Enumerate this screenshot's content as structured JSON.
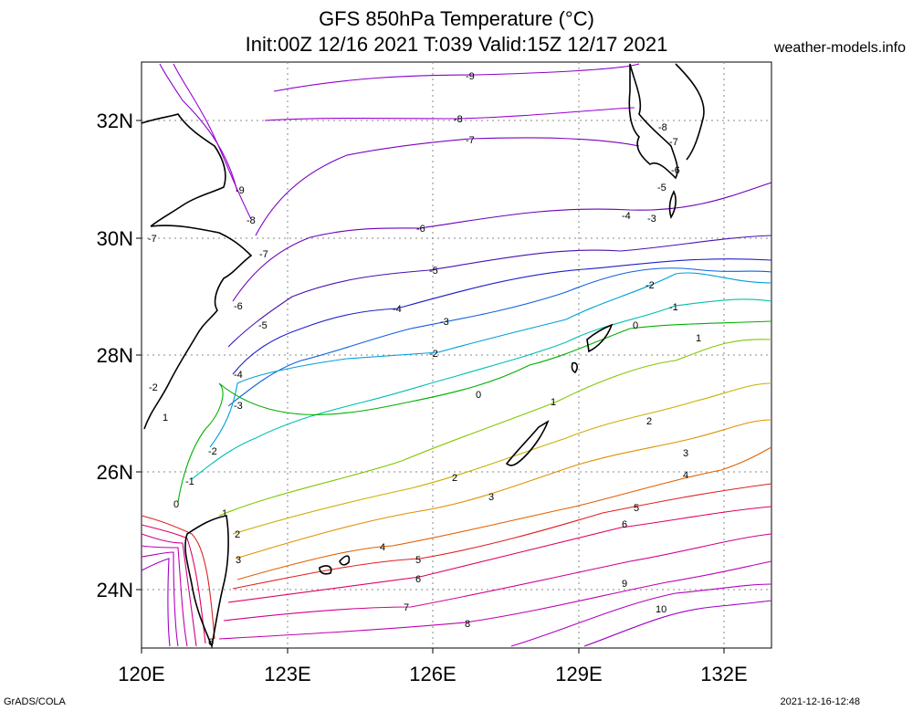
{
  "header": {
    "title": "GFS 850hPa Temperature (°C)",
    "subtitle": "Init:00Z 12/16 2021 T:039 Valid:15Z 12/17 2021",
    "site": "weather-models.info"
  },
  "footer": {
    "left": "GrADS/COLA",
    "right": "2021-12-16-12:48"
  },
  "map": {
    "lon_labels": [
      "120E",
      "123E",
      "126E",
      "129E",
      "132E"
    ],
    "lat_labels": [
      "32N",
      "30N",
      "28N",
      "26N",
      "24N"
    ],
    "lon_range": [
      120,
      133
    ],
    "lat_range": [
      23,
      33
    ],
    "grid": true,
    "variable": "850hPa Temperature",
    "units": "°C",
    "contour_interval": 1,
    "contours": [
      {
        "value": -9,
        "color": "#8b00c8",
        "labels": [
          "-9"
        ]
      },
      {
        "value": -8,
        "color": "#9a00d2",
        "labels": [
          "-8"
        ]
      },
      {
        "value": -7,
        "color": "#7a00c0",
        "labels": [
          "-7"
        ]
      },
      {
        "value": -6,
        "color": "#6a00b8",
        "labels": [
          "-6"
        ]
      },
      {
        "value": -5,
        "color": "#4a10b0",
        "labels": [
          "-5"
        ]
      },
      {
        "value": -4,
        "color": "#2020c8",
        "labels": [
          "-4"
        ]
      },
      {
        "value": -3,
        "color": "#1060e0",
        "labels": [
          "-3"
        ]
      },
      {
        "value": -2,
        "color": "#00a0d8",
        "labels": [
          "-2"
        ]
      },
      {
        "value": -1,
        "color": "#00c0b0",
        "labels": [
          "-1"
        ]
      },
      {
        "value": 0,
        "color": "#00b000",
        "labels": [
          "0"
        ]
      },
      {
        "value": 1,
        "color": "#80c800",
        "labels": [
          "1"
        ]
      },
      {
        "value": 2,
        "color": "#c8b000",
        "labels": [
          "2"
        ]
      },
      {
        "value": 3,
        "color": "#e09000",
        "labels": [
          "3"
        ]
      },
      {
        "value": 4,
        "color": "#e06000",
        "labels": [
          "4"
        ]
      },
      {
        "value": 5,
        "color": "#e02020",
        "labels": [
          "5"
        ]
      },
      {
        "value": 6,
        "color": "#e00060",
        "labels": [
          "6"
        ]
      },
      {
        "value": 7,
        "color": "#d00090",
        "labels": [
          "7"
        ]
      },
      {
        "value": 8,
        "color": "#c000b0",
        "labels": [
          "8"
        ]
      },
      {
        "value": 9,
        "color": "#b000c0",
        "labels": [
          "9"
        ]
      },
      {
        "value": 10,
        "color": "#a000c8",
        "labels": [
          "10"
        ]
      }
    ]
  }
}
